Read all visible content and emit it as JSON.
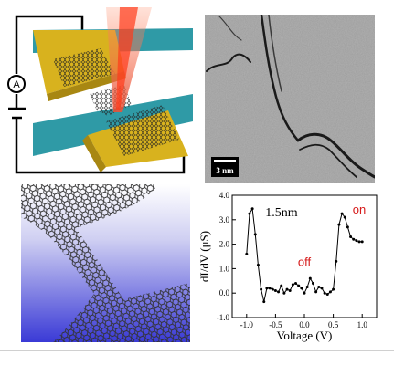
{
  "figure": {
    "ammeter_symbol": "A",
    "scale_bar_label": "3 nm",
    "colors": {
      "substrate_teal": "#2f9aa6",
      "electrode_gold": "#d8b21e",
      "laser_red": "#e8533a",
      "ribbon_bg_top": "#ffffff",
      "ribbon_bg_bottom": "#3a3ad6",
      "annotation_red": "#d61a1a"
    }
  },
  "chart_data": {
    "type": "line",
    "title": "1.5nm",
    "xlabel": "Voltage (V)",
    "ylabel": "dI/dV (μS)",
    "xlim": [
      -1.25,
      1.25
    ],
    "ylim": [
      -1.0,
      4.0
    ],
    "xticks": [
      "-1.0",
      "-0.5",
      "0.0",
      "0.5",
      "1.0"
    ],
    "yticks": [
      "-1.0",
      "0.0",
      "1.0",
      "2.0",
      "3.0",
      "4.0"
    ],
    "annotations": [
      {
        "text": "off",
        "x": 0.0,
        "y": 1.1
      },
      {
        "text": "on",
        "x": 0.95,
        "y": 3.25
      }
    ],
    "series": [
      {
        "x": [
          -1.0,
          -0.95,
          -0.9,
          -0.85,
          -0.8,
          -0.75,
          -0.7,
          -0.65,
          -0.6,
          -0.55,
          -0.5,
          -0.45,
          -0.4,
          -0.35,
          -0.3,
          -0.25,
          -0.2,
          -0.15,
          -0.1,
          -0.05,
          0.0,
          0.05,
          0.1,
          0.15,
          0.2,
          0.25,
          0.3,
          0.35,
          0.4,
          0.45,
          0.5,
          0.55,
          0.6,
          0.65,
          0.7,
          0.75,
          0.8,
          0.85,
          0.9,
          0.95,
          1.0
        ],
        "y": [
          1.6,
          3.25,
          3.45,
          2.4,
          1.15,
          0.15,
          -0.35,
          0.2,
          0.2,
          0.15,
          0.1,
          0.05,
          0.3,
          0.0,
          0.15,
          0.1,
          0.35,
          0.4,
          0.3,
          0.2,
          0.0,
          0.25,
          0.6,
          0.4,
          0.05,
          0.25,
          0.2,
          0.0,
          -0.05,
          0.05,
          0.15,
          1.3,
          2.8,
          3.25,
          3.1,
          2.7,
          2.3,
          2.2,
          2.15,
          2.1,
          2.1
        ]
      }
    ]
  }
}
